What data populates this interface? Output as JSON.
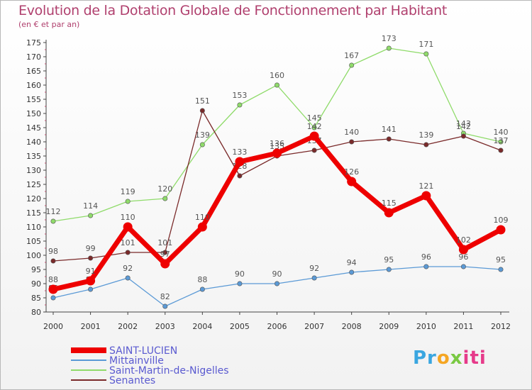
{
  "chart_data": {
    "type": "line",
    "title": "Evolution de la Dotation Globale de Fonctionnement par Habitant",
    "subtitle": "(en € et par an)",
    "xlabel": "",
    "ylabel": "",
    "x": [
      "2000",
      "2001",
      "2002",
      "2003",
      "2004",
      "2005",
      "2006",
      "2007",
      "2008",
      "2009",
      "2010",
      "2011",
      "2012"
    ],
    "ylim": [
      80,
      175
    ],
    "ytick_step": 5,
    "grid": false,
    "legend_position": "bottom-left",
    "series": [
      {
        "name": "SAINT-LUCIEN",
        "color": "#ee0000",
        "width": 7,
        "values": [
          88,
          91,
          110,
          97,
          110,
          133,
          136,
          142,
          126,
          115,
          121,
          102,
          109
        ]
      },
      {
        "name": "Mittainville",
        "color": "#5b9ad6",
        "width": 1.3,
        "values": [
          85,
          88,
          92,
          82,
          88,
          90,
          90,
          92,
          94,
          95,
          96,
          96,
          95
        ]
      },
      {
        "name": "Saint-Martin-de-Nigelles",
        "color": "#8fdb6a",
        "width": 1.3,
        "values": [
          112,
          114,
          119,
          120,
          139,
          153,
          160,
          145,
          167,
          173,
          171,
          143,
          140
        ]
      },
      {
        "name": "Senantes",
        "color": "#7a2a2a",
        "width": 1.3,
        "values": [
          98,
          99,
          101,
          101,
          151,
          128,
          135,
          137,
          140,
          141,
          139,
          142,
          137
        ]
      }
    ]
  },
  "brand": {
    "parts": [
      "Pr",
      "o",
      "x",
      "iti"
    ],
    "colors": [
      "#3aa6e0",
      "#f5a623",
      "#7ac943",
      "#e63a8a"
    ]
  }
}
